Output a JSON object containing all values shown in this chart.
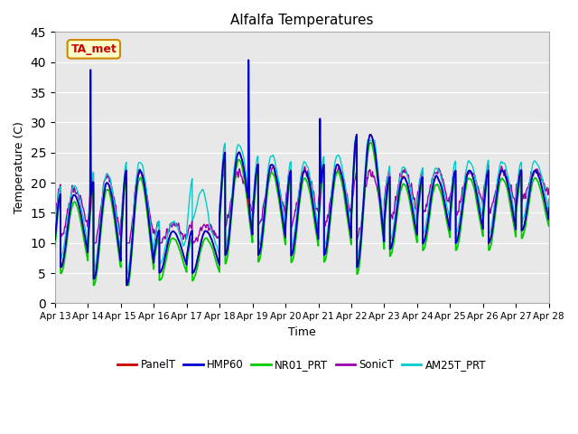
{
  "title": "Alfalfa Temperatures",
  "xlabel": "Time",
  "ylabel": "Temperature (C)",
  "ylim": [
    0,
    45
  ],
  "yticks": [
    0,
    5,
    10,
    15,
    20,
    25,
    30,
    35,
    40,
    45
  ],
  "xtick_labels": [
    "Apr 13",
    "Apr 14",
    "Apr 15",
    "Apr 16",
    "Apr 17",
    "Apr 18",
    "Apr 19",
    "Apr 20",
    "Apr 21",
    "Apr 22",
    "Apr 23",
    "Apr 24",
    "Apr 25",
    "Apr 26",
    "Apr 27",
    "Apr 28"
  ],
  "series_colors": {
    "PanelT": "#cc0000",
    "HMP60": "#0000cc",
    "NR01_PRT": "#00cc00",
    "SonicT": "#9900aa",
    "AM25T_PRT": "#00cccc"
  },
  "series_linewidths": {
    "PanelT": 1.0,
    "HMP60": 1.3,
    "NR01_PRT": 1.3,
    "SonicT": 1.0,
    "AM25T_PRT": 1.0
  },
  "annotation_text": "TA_met",
  "annotation_color": "#cc0000",
  "annotation_bg": "#ffffcc",
  "annotation_border": "#cc8800",
  "bg_color": "#ffffff",
  "plot_bg_color": "#e8e8e8",
  "grid_color": "#ffffff",
  "legend_labels": [
    "PanelT",
    "HMP60",
    "NR01_PRT",
    "SonicT",
    "AM25T_PRT"
  ],
  "figsize": [
    6.4,
    4.8
  ],
  "dpi": 100
}
